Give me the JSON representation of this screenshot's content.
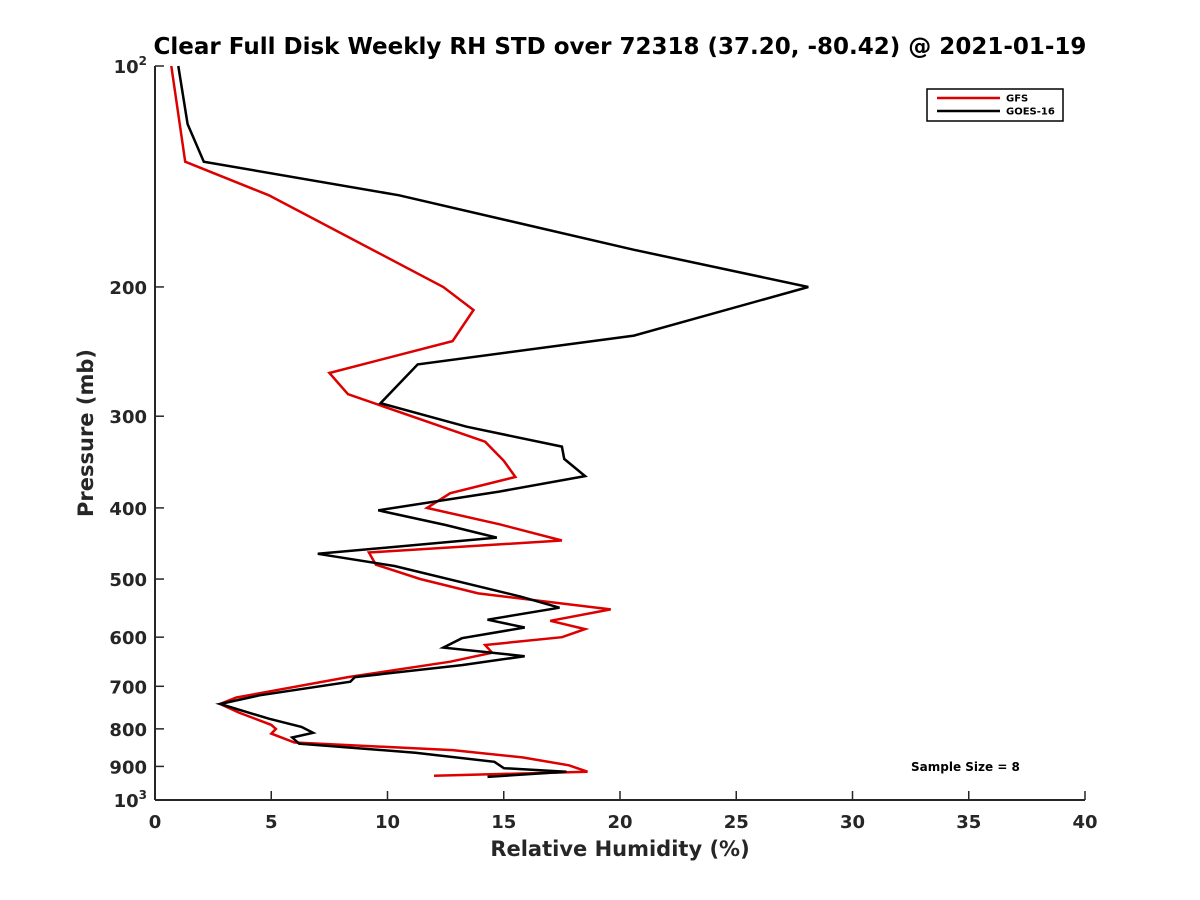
{
  "chart_data": {
    "type": "line",
    "title": "Clear Full Disk Weekly RH STD over 72318 (37.20, -80.42) @ 2021-01-19",
    "xlabel": "Relative Humidity (%)",
    "ylabel": "Pressure (mb)",
    "xlim": [
      0,
      40
    ],
    "ylim": [
      100,
      1000
    ],
    "y_scale": "log",
    "y_reversed": true,
    "grid": false,
    "legend_position": "top-right",
    "x_ticks": [
      0,
      5,
      10,
      15,
      20,
      25,
      30,
      35,
      40
    ],
    "x_tick_labels": [
      "0",
      "5",
      "10",
      "15",
      "20",
      "25",
      "30",
      "35",
      "40"
    ],
    "y_ticks": [
      100,
      200,
      300,
      400,
      500,
      600,
      700,
      800,
      900,
      1000
    ],
    "y_tick_labels": [
      {
        "base": "10",
        "sup": "2"
      },
      {
        "base": "200",
        "sup": ""
      },
      {
        "base": "300",
        "sup": ""
      },
      {
        "base": "400",
        "sup": ""
      },
      {
        "base": "500",
        "sup": ""
      },
      {
        "base": "600",
        "sup": ""
      },
      {
        "base": "700",
        "sup": ""
      },
      {
        "base": "800",
        "sup": ""
      },
      {
        "base": "900",
        "sup": ""
      },
      {
        "base": "10",
        "sup": "3"
      }
    ],
    "annotation": "Sample Size = 8",
    "series": [
      {
        "name": "GFS",
        "color": "#dd0000",
        "points": [
          [
            0.7,
            100
          ],
          [
            1.3,
            135
          ],
          [
            4.9,
            150
          ],
          [
            12.4,
            200
          ],
          [
            13.7,
            215
          ],
          [
            12.8,
            237
          ],
          [
            7.5,
            262
          ],
          [
            8.3,
            280
          ],
          [
            14.2,
            325
          ],
          [
            15.0,
            345
          ],
          [
            15.5,
            363
          ],
          [
            12.7,
            382
          ],
          [
            11.7,
            400
          ],
          [
            14.8,
            421
          ],
          [
            17.5,
            443
          ],
          [
            9.2,
            460
          ],
          [
            9.5,
            478
          ],
          [
            11.4,
            500
          ],
          [
            13.9,
            523
          ],
          [
            19.6,
            550
          ],
          [
            17.0,
            570
          ],
          [
            18.5,
            585
          ],
          [
            17.5,
            600
          ],
          [
            14.2,
            615
          ],
          [
            14.5,
            630
          ],
          [
            12.7,
            648
          ],
          [
            8.3,
            680
          ],
          [
            3.5,
            725
          ],
          [
            2.8,
            740
          ],
          [
            3.6,
            760
          ],
          [
            5.0,
            790
          ],
          [
            5.2,
            800
          ],
          [
            5.0,
            812
          ],
          [
            6.0,
            835
          ],
          [
            12.8,
            855
          ],
          [
            15.8,
            875
          ],
          [
            17.8,
            897
          ],
          [
            18.6,
            915
          ],
          [
            12.0,
            927
          ]
        ]
      },
      {
        "name": "GOES-16",
        "color": "#000000",
        "points": [
          [
            1.0,
            100
          ],
          [
            1.4,
            120
          ],
          [
            2.1,
            135
          ],
          [
            10.5,
            150
          ],
          [
            20.6,
            178
          ],
          [
            28.1,
            200
          ],
          [
            20.6,
            233
          ],
          [
            11.3,
            255
          ],
          [
            9.7,
            288
          ],
          [
            13.4,
            310
          ],
          [
            17.5,
            330
          ],
          [
            17.6,
            343
          ],
          [
            18.5,
            362
          ],
          [
            14.8,
            380
          ],
          [
            9.6,
            403
          ],
          [
            12.5,
            422
          ],
          [
            14.7,
            439
          ],
          [
            7.0,
            462
          ],
          [
            10.3,
            480
          ],
          [
            15.7,
            528
          ],
          [
            17.4,
            547
          ],
          [
            14.3,
            568
          ],
          [
            15.9,
            582
          ],
          [
            13.2,
            602
          ],
          [
            12.4,
            620
          ],
          [
            15.9,
            637
          ],
          [
            13.2,
            655
          ],
          [
            8.6,
            680
          ],
          [
            8.4,
            690
          ],
          [
            4.5,
            720
          ],
          [
            2.8,
            740
          ],
          [
            4.9,
            775
          ],
          [
            6.3,
            795
          ],
          [
            6.8,
            810
          ],
          [
            5.9,
            822
          ],
          [
            6.2,
            838
          ],
          [
            11.2,
            862
          ],
          [
            14.6,
            887
          ],
          [
            15.0,
            905
          ],
          [
            17.7,
            915
          ],
          [
            14.3,
            930
          ]
        ]
      }
    ]
  }
}
